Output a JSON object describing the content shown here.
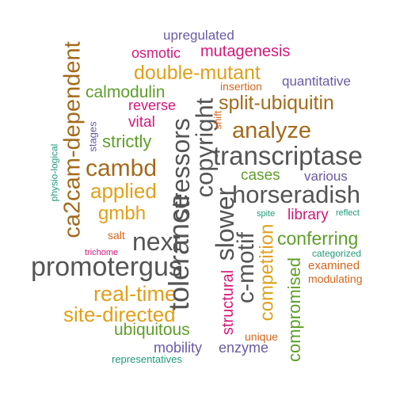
{
  "colors": {
    "purple": "#6a5aa6",
    "magenta": "#d6187a",
    "orange": "#e0a01c",
    "brown": "#a36a1c",
    "green": "#5e9e2a",
    "teal": "#1f9a7a",
    "rust": "#d5661c",
    "gray": "#555555"
  },
  "words": [
    {
      "id": "upregulated",
      "text": "upregulated",
      "color": "purple"
    },
    {
      "id": "osmotic",
      "text": "osmotic",
      "color": "magenta"
    },
    {
      "id": "mutagenesis",
      "text": "mutagenesis",
      "color": "magenta"
    },
    {
      "id": "double-mutant",
      "text": "double-mutant",
      "color": "orange"
    },
    {
      "id": "insertion",
      "text": "insertion",
      "color": "rust"
    },
    {
      "id": "quantitative",
      "text": "quantitative",
      "color": "purple"
    },
    {
      "id": "calmodulin",
      "text": "calmodulin",
      "color": "green"
    },
    {
      "id": "reverse",
      "text": "reverse",
      "color": "magenta"
    },
    {
      "id": "split-ubiquitin",
      "text": "split-ubiquitin",
      "color": "brown"
    },
    {
      "id": "vital",
      "text": "vital",
      "color": "magenta"
    },
    {
      "id": "analyze",
      "text": "analyze",
      "color": "brown"
    },
    {
      "id": "strictly",
      "text": "strictly",
      "color": "green"
    },
    {
      "id": "transcriptase",
      "text": "transcriptase",
      "color": "gray"
    },
    {
      "id": "cambd",
      "text": "cambd",
      "color": "brown"
    },
    {
      "id": "cases",
      "text": "cases",
      "color": "green"
    },
    {
      "id": "various",
      "text": "various",
      "color": "purple"
    },
    {
      "id": "applied",
      "text": "applied",
      "color": "orange"
    },
    {
      "id": "horseradish",
      "text": "horseradish",
      "color": "gray"
    },
    {
      "id": "gmbh",
      "text": "gmbh",
      "color": "orange"
    },
    {
      "id": "spite",
      "text": "spite",
      "color": "teal"
    },
    {
      "id": "library",
      "text": "library",
      "color": "magenta"
    },
    {
      "id": "reflect",
      "text": "reflect",
      "color": "teal"
    },
    {
      "id": "salt",
      "text": "salt",
      "color": "rust"
    },
    {
      "id": "next",
      "text": "next",
      "color": "gray"
    },
    {
      "id": "conferring",
      "text": "conferring",
      "color": "green"
    },
    {
      "id": "trichome",
      "text": "trichome",
      "color": "magenta"
    },
    {
      "id": "categorized",
      "text": "categorized",
      "color": "teal"
    },
    {
      "id": "promotergus",
      "text": "promotergus",
      "color": "gray"
    },
    {
      "id": "examined",
      "text": "examined",
      "color": "rust"
    },
    {
      "id": "modulating",
      "text": "modulating",
      "color": "rust"
    },
    {
      "id": "real-time",
      "text": "real-time",
      "color": "orange"
    },
    {
      "id": "site-directed",
      "text": "site-directed",
      "color": "orange"
    },
    {
      "id": "ubiquitous",
      "text": "ubiquitous",
      "color": "green"
    },
    {
      "id": "unique",
      "text": "unique",
      "color": "rust"
    },
    {
      "id": "mobility",
      "text": "mobility",
      "color": "purple"
    },
    {
      "id": "enzyme",
      "text": "enzyme",
      "color": "purple"
    },
    {
      "id": "representatives",
      "text": "representatives",
      "color": "teal"
    },
    {
      "id": "ca2cam-dependent",
      "text": "ca2cam-dependent",
      "color": "brown"
    },
    {
      "id": "stages",
      "text": "stages",
      "color": "purple"
    },
    {
      "id": "physio-logical",
      "text": "physio-logical",
      "color": "teal"
    },
    {
      "id": "stressors",
      "text": "stressors",
      "color": "gray"
    },
    {
      "id": "tolerance",
      "text": "tolerance",
      "color": "gray"
    },
    {
      "id": "copyright",
      "text": "copyright",
      "color": "gray"
    },
    {
      "id": "shift",
      "text": "shift",
      "color": "rust"
    },
    {
      "id": "slower",
      "text": "slower",
      "color": "gray"
    },
    {
      "id": "c-motif",
      "text": "c-motif",
      "color": "gray"
    },
    {
      "id": "competition",
      "text": "competition",
      "color": "orange"
    },
    {
      "id": "structural",
      "text": "structural",
      "color": "magenta"
    },
    {
      "id": "compromised",
      "text": "compromised",
      "color": "green"
    }
  ]
}
